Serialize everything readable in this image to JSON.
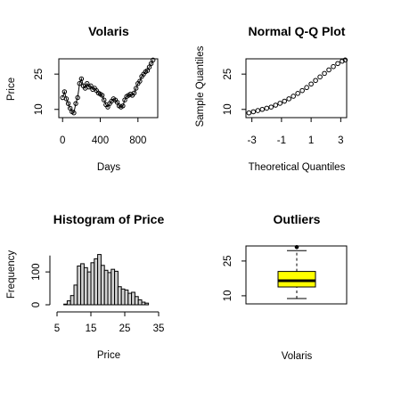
{
  "chart_data": [
    {
      "id": "ts",
      "type": "line",
      "title": "Volaris",
      "xlabel": "Days",
      "ylabel": "Price",
      "xlim": [
        -40,
        1010
      ],
      "ylim": [
        6.5,
        31.5
      ],
      "xticks": [
        0,
        400,
        800
      ],
      "yticks": [
        10,
        25
      ],
      "x": [
        0,
        20,
        40,
        60,
        80,
        100,
        120,
        140,
        160,
        180,
        200,
        220,
        240,
        260,
        280,
        300,
        320,
        340,
        360,
        380,
        400,
        420,
        440,
        460,
        480,
        500,
        520,
        540,
        560,
        580,
        600,
        620,
        640,
        660,
        680,
        700,
        720,
        740,
        760,
        780,
        800,
        820,
        840,
        860,
        880,
        900,
        920,
        940,
        960
      ],
      "y": [
        15,
        17.5,
        14.5,
        12.5,
        10.5,
        9,
        8.5,
        12.5,
        15,
        21,
        23,
        20,
        19,
        21,
        19.5,
        20,
        18.5,
        19,
        18,
        17,
        16.5,
        16,
        14,
        12,
        11,
        12.5,
        13.5,
        14.5,
        14,
        13,
        11.5,
        11,
        11.5,
        14,
        15.5,
        16,
        16.5,
        16,
        17,
        19,
        21,
        22,
        24,
        25,
        26,
        26.5,
        28,
        29.5,
        31
      ]
    },
    {
      "id": "qq",
      "type": "scatter",
      "title": "Normal Q-Q Plot",
      "xlabel": "Theoretical Quantiles",
      "ylabel": "Sample Quantiles",
      "xlim": [
        -3.4,
        3.4
      ],
      "ylim": [
        6.5,
        31.5
      ],
      "xticks": [
        -3,
        -1,
        1,
        3
      ],
      "yticks": [
        10,
        25
      ],
      "x": [
        -3.2,
        -2.9,
        -2.6,
        -2.3,
        -2.0,
        -1.7,
        -1.4,
        -1.1,
        -0.8,
        -0.5,
        -0.2,
        0.1,
        0.4,
        0.7,
        1.0,
        1.3,
        1.6,
        1.9,
        2.2,
        2.5,
        2.8,
        3.1,
        3.3
      ],
      "y": [
        8.5,
        9,
        9.5,
        10,
        10.5,
        11,
        11.8,
        12.6,
        13.5,
        14.5,
        15.6,
        16.8,
        18,
        19.3,
        20.8,
        22.3,
        23.8,
        25.3,
        26.8,
        28.2,
        29.5,
        30.5,
        31
      ]
    },
    {
      "id": "hist",
      "type": "bar",
      "title": "Histogram of Price",
      "xlabel": "Price",
      "ylabel": "Frequency",
      "xlim": [
        5,
        35
      ],
      "ylim": [
        0,
        160
      ],
      "xticks": [
        5,
        15,
        25,
        35
      ],
      "yticks": [
        0,
        100
      ],
      "bin_edges": [
        7,
        8,
        9,
        10,
        11,
        12,
        13,
        14,
        15,
        16,
        17,
        18,
        19,
        20,
        21,
        22,
        23,
        24,
        25,
        26,
        27,
        28,
        29,
        30,
        31,
        32
      ],
      "values": [
        2,
        12,
        28,
        60,
        118,
        125,
        113,
        100,
        128,
        140,
        153,
        120,
        105,
        98,
        108,
        102,
        55,
        48,
        45,
        35,
        38,
        25,
        15,
        8,
        5
      ]
    },
    {
      "id": "box",
      "type": "boxplot",
      "title": "Outliers",
      "xlabel": "Volaris",
      "ylim": [
        6.5,
        31.5
      ],
      "yticks": [
        10,
        25
      ],
      "whisker_low": 8.8,
      "q1": 13.8,
      "median": 16.5,
      "q3": 20.5,
      "whisker_high": 29.5,
      "outliers": [
        31
      ],
      "fill": "#ffff00"
    }
  ]
}
